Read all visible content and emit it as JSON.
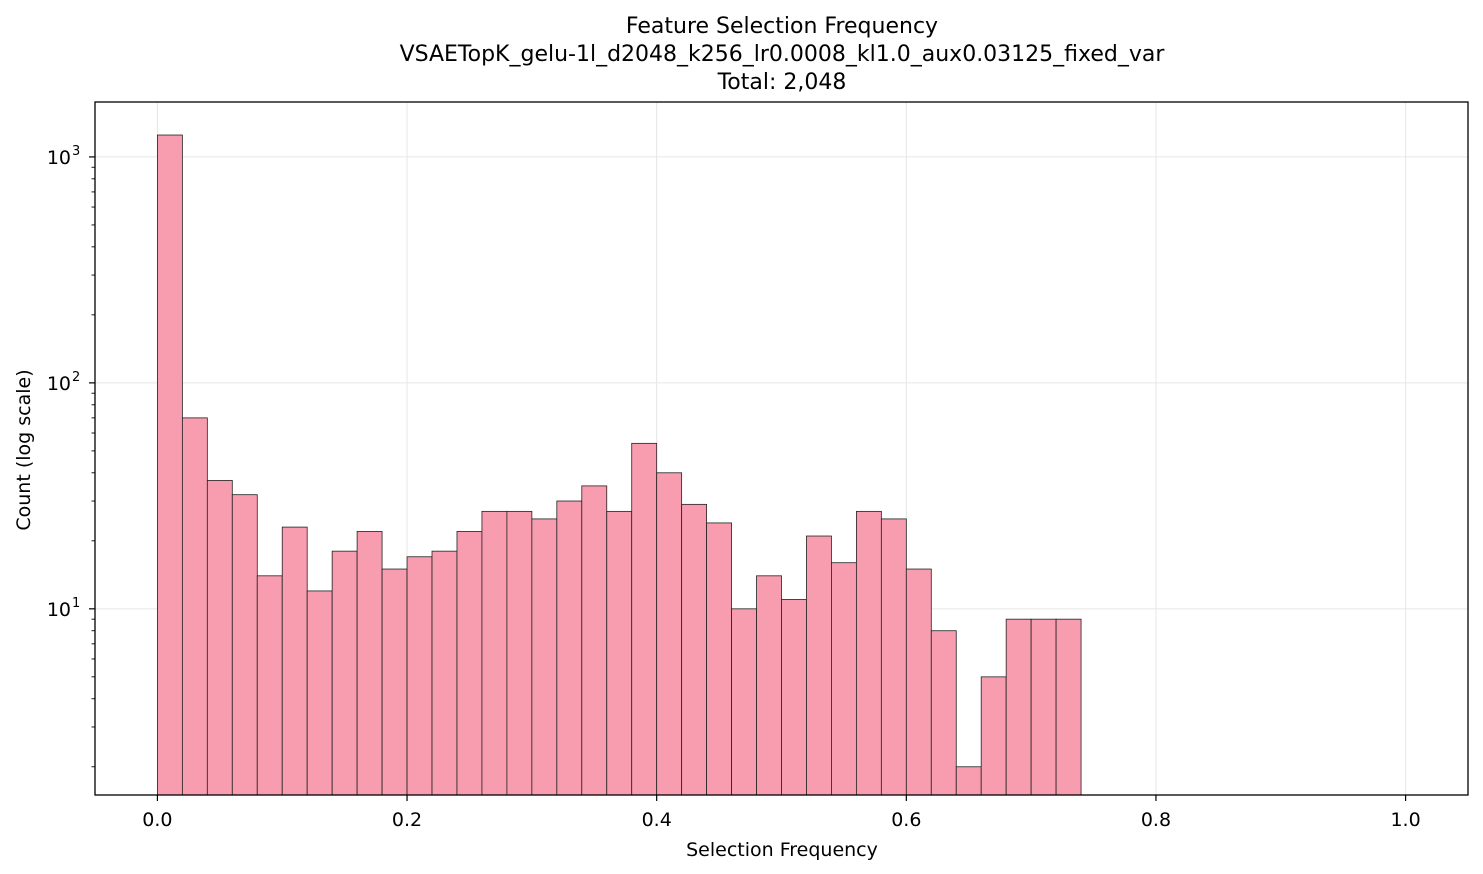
{
  "chart_data": {
    "type": "bar",
    "title": "Feature Selection Frequency",
    "subtitle": "VSAETopK_gelu-1l_d2048_k256_lr0.0008_kl1.0_aux0.03125_fixed_var",
    "total_label": "Total: 2,048",
    "xlabel": "Selection Frequency",
    "ylabel": "Count (log scale)",
    "x_scale": "linear",
    "y_scale": "log",
    "xlim": [
      -0.05,
      1.05
    ],
    "ylim": [
      1.5,
      1750
    ],
    "grid": true,
    "bar_color": "#f89cb0",
    "edge_color": "#222222",
    "bin_width": 0.02,
    "bin_edges_start": 0.0,
    "values": [
      1250,
      70,
      37,
      32,
      14,
      23,
      12,
      18,
      22,
      15,
      17,
      18,
      22,
      27,
      27,
      25,
      30,
      35,
      27,
      54,
      40,
      29,
      24,
      10,
      14,
      11,
      21,
      16,
      27,
      25,
      15,
      8,
      2,
      5,
      9,
      9,
      9
    ],
    "x_ticks": [
      {
        "value": 0.0,
        "label": "0.0"
      },
      {
        "value": 0.2,
        "label": "0.2"
      },
      {
        "value": 0.4,
        "label": "0.4"
      },
      {
        "value": 0.6,
        "label": "0.6"
      },
      {
        "value": 0.8,
        "label": "0.8"
      },
      {
        "value": 1.0,
        "label": "1.0"
      }
    ],
    "y_ticks": [
      {
        "value": 10,
        "base": "10",
        "exp": "1"
      },
      {
        "value": 100,
        "base": "10",
        "exp": "2"
      },
      {
        "value": 1000,
        "base": "10",
        "exp": "3"
      }
    ]
  }
}
